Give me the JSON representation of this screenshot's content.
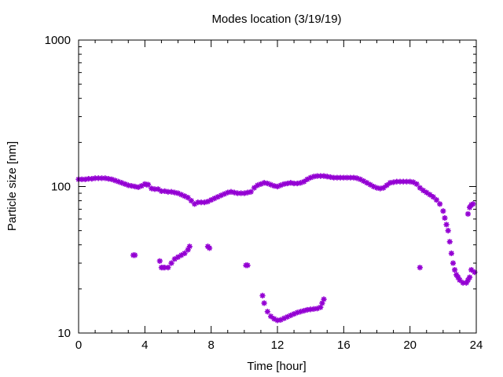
{
  "chart_data": {
    "type": "scatter",
    "title": "Modes location (3/19/19)",
    "xlabel": "Time [hour]",
    "ylabel": "Particle size [nm]",
    "xlim": [
      0,
      24
    ],
    "ylim": [
      10,
      1000
    ],
    "yscale": "log",
    "grid": false,
    "legend": "none",
    "marker": "star",
    "color": "#9400d3",
    "x_ticks": [
      0,
      4,
      8,
      12,
      16,
      20,
      24
    ],
    "x_tick_labels": [
      "0",
      "4",
      "8",
      "12",
      "16",
      "20",
      "24"
    ],
    "y_ticks": [
      10,
      100,
      1000
    ],
    "y_tick_labels": [
      "10",
      "100",
      "1000"
    ],
    "series": [
      {
        "points": [
          [
            0.0,
            112
          ],
          [
            0.2,
            112
          ],
          [
            0.4,
            112
          ],
          [
            0.6,
            113
          ],
          [
            0.8,
            113
          ],
          [
            1.0,
            114
          ],
          [
            1.2,
            114
          ],
          [
            1.4,
            114
          ],
          [
            1.6,
            114
          ],
          [
            1.8,
            113
          ],
          [
            2.0,
            112
          ],
          [
            2.2,
            110
          ],
          [
            2.4,
            108
          ],
          [
            2.6,
            106
          ],
          [
            2.8,
            104
          ],
          [
            3.0,
            102
          ],
          [
            3.2,
            101
          ],
          [
            3.4,
            100
          ],
          [
            3.6,
            99
          ],
          [
            3.8,
            101
          ],
          [
            4.0,
            104
          ],
          [
            4.1,
            103
          ],
          [
            4.2,
            103
          ],
          [
            4.4,
            97
          ],
          [
            4.6,
            96
          ],
          [
            4.8,
            96
          ],
          [
            5.0,
            93
          ],
          [
            5.2,
            93
          ],
          [
            5.4,
            92
          ],
          [
            5.6,
            92
          ],
          [
            5.8,
            91
          ],
          [
            6.0,
            90
          ],
          [
            6.2,
            88
          ],
          [
            6.4,
            86
          ],
          [
            6.6,
            84
          ],
          [
            6.8,
            80
          ],
          [
            7.0,
            76
          ],
          [
            7.2,
            78
          ],
          [
            7.4,
            78
          ],
          [
            7.6,
            78
          ],
          [
            7.8,
            79
          ],
          [
            8.0,
            81
          ],
          [
            8.2,
            83
          ],
          [
            8.4,
            85
          ],
          [
            8.6,
            87
          ],
          [
            8.8,
            89
          ],
          [
            9.0,
            91
          ],
          [
            9.2,
            92
          ],
          [
            9.4,
            91
          ],
          [
            9.6,
            90
          ],
          [
            9.8,
            90
          ],
          [
            10.0,
            90
          ],
          [
            10.2,
            91
          ],
          [
            10.4,
            92
          ],
          [
            10.6,
            98
          ],
          [
            10.8,
            102
          ],
          [
            11.0,
            104
          ],
          [
            11.2,
            106
          ],
          [
            11.4,
            105
          ],
          [
            11.6,
            103
          ],
          [
            11.8,
            101
          ],
          [
            12.0,
            100
          ],
          [
            12.2,
            102
          ],
          [
            12.4,
            104
          ],
          [
            12.6,
            105
          ],
          [
            12.8,
            106
          ],
          [
            13.0,
            105
          ],
          [
            13.2,
            105
          ],
          [
            13.4,
            106
          ],
          [
            13.6,
            108
          ],
          [
            13.8,
            112
          ],
          [
            14.0,
            115
          ],
          [
            14.2,
            117
          ],
          [
            14.4,
            118
          ],
          [
            14.6,
            118
          ],
          [
            14.8,
            118
          ],
          [
            15.0,
            117
          ],
          [
            15.2,
            116
          ],
          [
            15.4,
            115
          ],
          [
            15.6,
            115
          ],
          [
            15.8,
            115
          ],
          [
            16.0,
            115
          ],
          [
            16.2,
            115
          ],
          [
            16.4,
            115
          ],
          [
            16.6,
            115
          ],
          [
            16.8,
            114
          ],
          [
            17.0,
            112
          ],
          [
            17.2,
            109
          ],
          [
            17.4,
            106
          ],
          [
            17.6,
            103
          ],
          [
            17.8,
            100
          ],
          [
            18.0,
            98
          ],
          [
            18.2,
            97
          ],
          [
            18.4,
            98
          ],
          [
            18.6,
            102
          ],
          [
            18.8,
            106
          ],
          [
            19.0,
            107
          ],
          [
            19.2,
            108
          ],
          [
            19.4,
            108
          ],
          [
            19.6,
            108
          ],
          [
            19.8,
            108
          ],
          [
            20.0,
            108
          ],
          [
            20.2,
            107
          ],
          [
            20.4,
            104
          ],
          [
            20.6,
            98
          ],
          [
            20.8,
            94
          ],
          [
            21.0,
            91
          ],
          [
            21.2,
            88
          ],
          [
            21.4,
            85
          ],
          [
            21.6,
            81
          ],
          [
            21.8,
            76
          ],
          [
            22.0,
            68
          ],
          [
            22.1,
            61
          ],
          [
            22.2,
            55
          ],
          [
            22.3,
            50
          ],
          [
            22.4,
            42
          ],
          [
            22.5,
            35
          ],
          [
            22.6,
            30
          ],
          [
            22.7,
            27
          ],
          [
            22.8,
            25
          ],
          [
            22.9,
            24
          ],
          [
            23.0,
            23
          ],
          [
            23.2,
            22
          ],
          [
            23.4,
            22
          ],
          [
            23.5,
            23
          ],
          [
            23.6,
            24
          ],
          [
            23.7,
            27
          ],
          [
            23.5,
            65
          ],
          [
            23.6,
            72
          ],
          [
            23.7,
            75
          ],
          [
            23.8,
            76
          ],
          [
            23.9,
            26
          ],
          [
            3.3,
            34
          ],
          [
            3.4,
            34
          ],
          [
            4.9,
            31
          ],
          [
            5.0,
            28
          ],
          [
            5.1,
            28
          ],
          [
            5.2,
            28
          ],
          [
            5.4,
            28
          ],
          [
            5.6,
            30
          ],
          [
            5.8,
            32
          ],
          [
            6.0,
            33
          ],
          [
            6.2,
            34
          ],
          [
            6.4,
            35
          ],
          [
            6.6,
            37
          ],
          [
            6.7,
            39
          ],
          [
            7.8,
            39
          ],
          [
            7.9,
            38
          ],
          [
            10.1,
            29
          ],
          [
            10.2,
            29
          ],
          [
            11.1,
            18
          ],
          [
            11.2,
            16
          ],
          [
            11.4,
            14
          ],
          [
            11.6,
            13
          ],
          [
            11.8,
            12.5
          ],
          [
            12.0,
            12.2
          ],
          [
            12.2,
            12.3
          ],
          [
            12.4,
            12.6
          ],
          [
            12.6,
            12.9
          ],
          [
            12.8,
            13.2
          ],
          [
            13.0,
            13.5
          ],
          [
            13.2,
            13.8
          ],
          [
            13.4,
            14.0
          ],
          [
            13.6,
            14.2
          ],
          [
            13.8,
            14.4
          ],
          [
            14.0,
            14.5
          ],
          [
            14.2,
            14.6
          ],
          [
            14.4,
            14.7
          ],
          [
            14.6,
            15
          ],
          [
            14.7,
            16
          ],
          [
            14.8,
            17
          ],
          [
            20.6,
            28
          ]
        ]
      }
    ]
  }
}
